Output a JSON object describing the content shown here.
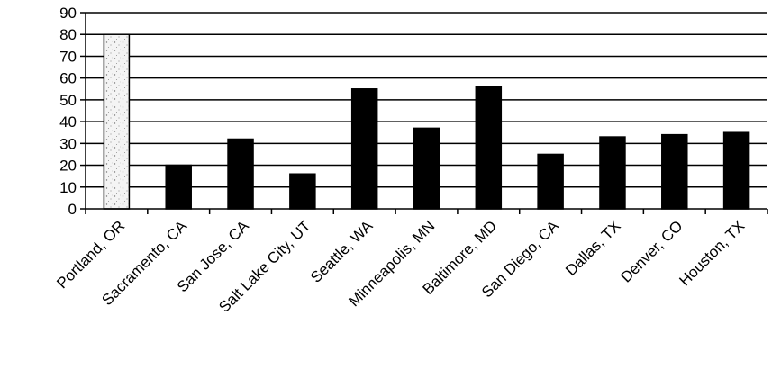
{
  "chart_data": {
    "type": "bar",
    "title": "",
    "xlabel": "",
    "ylabel": "",
    "categories": [
      "Portland, OR",
      "Sacramento, CA",
      "San Jose, CA",
      "Salt Lake City, UT",
      "Seattle, WA",
      "Minneapolis, MN",
      "Baltimore, MD",
      "San Diego, CA",
      "Dallas, TX",
      "Denver, CO",
      "Houston, TX"
    ],
    "values": [
      80,
      20,
      32,
      16,
      55,
      37,
      56,
      25,
      33,
      34,
      35
    ],
    "ylim": [
      0,
      90
    ],
    "yticks": [
      0,
      10,
      20,
      30,
      40,
      50,
      60,
      70,
      80,
      90
    ],
    "grid": true,
    "legend": "none",
    "colors": {
      "bar": "#000000",
      "highlight_bar": "#f2f2f2",
      "highlight_category": "Portland, OR"
    }
  }
}
